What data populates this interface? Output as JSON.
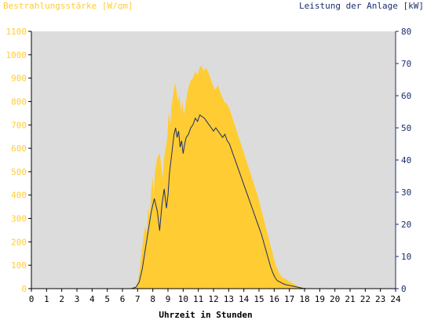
{
  "chart_data": {
    "type": "area",
    "title_left": "Bestrahlungsstärke [W/qm]",
    "title_right": "Leistung der Anlage [kW]",
    "xlabel": "Uhrzeit in Stunden",
    "xlim": [
      0,
      24
    ],
    "x_ticks": [
      "0",
      "1",
      "2",
      "3",
      "4",
      "5",
      "6",
      "7",
      "8",
      "9",
      "10",
      "11",
      "12",
      "13",
      "14",
      "15",
      "16",
      "17",
      "18",
      "19",
      "20",
      "21",
      "22",
      "23",
      "24"
    ],
    "y_left": {
      "lim": [
        0,
        1100
      ],
      "ticks": [
        "0",
        "100",
        "200",
        "300",
        "400",
        "500",
        "600",
        "700",
        "800",
        "900",
        "1000",
        "1100"
      ]
    },
    "y_right": {
      "lim": [
        0,
        80
      ],
      "ticks": [
        "0",
        "10",
        "20",
        "30",
        "40",
        "50",
        "60",
        "70",
        "80"
      ]
    },
    "grid": false,
    "colors": {
      "irradiance": "#ffcc33",
      "power": "#1a2e6e",
      "plot_bg": "#dcdcdc",
      "left_axis_text": "#ffcc33",
      "right_axis_text": "#1a2e6e"
    },
    "series": [
      {
        "axis": "left",
        "style": "area",
        "points": [
          [
            0,
            0
          ],
          [
            6.6,
            0
          ],
          [
            6.9,
            10
          ],
          [
            7.05,
            40
          ],
          [
            7.2,
            120
          ],
          [
            7.35,
            200
          ],
          [
            7.5,
            270
          ],
          [
            7.6,
            240
          ],
          [
            7.7,
            350
          ],
          [
            7.8,
            300
          ],
          [
            7.9,
            420
          ],
          [
            8.0,
            480
          ],
          [
            8.05,
            390
          ],
          [
            8.15,
            500
          ],
          [
            8.3,
            560
          ],
          [
            8.45,
            580
          ],
          [
            8.55,
            530
          ],
          [
            8.65,
            470
          ],
          [
            8.75,
            560
          ],
          [
            8.85,
            600
          ],
          [
            8.95,
            640
          ],
          [
            9.05,
            760
          ],
          [
            9.15,
            700
          ],
          [
            9.25,
            790
          ],
          [
            9.35,
            830
          ],
          [
            9.45,
            880
          ],
          [
            9.55,
            850
          ],
          [
            9.65,
            800
          ],
          [
            9.75,
            830
          ],
          [
            9.85,
            760
          ],
          [
            9.95,
            800
          ],
          [
            10.05,
            740
          ],
          [
            10.15,
            780
          ],
          [
            10.25,
            830
          ],
          [
            10.35,
            860
          ],
          [
            10.5,
            890
          ],
          [
            10.65,
            900
          ],
          [
            10.8,
            930
          ],
          [
            10.95,
            910
          ],
          [
            11.05,
            940
          ],
          [
            11.2,
            955
          ],
          [
            11.35,
            930
          ],
          [
            11.5,
            945
          ],
          [
            11.7,
            920
          ],
          [
            11.9,
            880
          ],
          [
            12.1,
            850
          ],
          [
            12.3,
            870
          ],
          [
            12.5,
            830
          ],
          [
            12.7,
            800
          ],
          [
            12.9,
            790
          ],
          [
            13.1,
            760
          ],
          [
            13.3,
            720
          ],
          [
            13.5,
            680
          ],
          [
            13.7,
            640
          ],
          [
            13.9,
            600
          ],
          [
            14.1,
            560
          ],
          [
            14.3,
            520
          ],
          [
            14.5,
            480
          ],
          [
            14.7,
            440
          ],
          [
            14.9,
            400
          ],
          [
            15.1,
            350
          ],
          [
            15.3,
            300
          ],
          [
            15.5,
            250
          ],
          [
            15.7,
            200
          ],
          [
            15.9,
            150
          ],
          [
            16.1,
            100
          ],
          [
            16.3,
            70
          ],
          [
            16.5,
            50
          ],
          [
            16.8,
            40
          ],
          [
            17.0,
            30
          ],
          [
            17.3,
            20
          ],
          [
            17.6,
            10
          ],
          [
            17.9,
            2
          ],
          [
            18.2,
            0
          ],
          [
            24,
            0
          ]
        ]
      },
      {
        "axis": "right",
        "style": "line",
        "points": [
          [
            0,
            0
          ],
          [
            6.6,
            0
          ],
          [
            6.9,
            0.5
          ],
          [
            7.1,
            2
          ],
          [
            7.3,
            6
          ],
          [
            7.5,
            12
          ],
          [
            7.7,
            18
          ],
          [
            7.9,
            24
          ],
          [
            8.1,
            28
          ],
          [
            8.3,
            24
          ],
          [
            8.45,
            18
          ],
          [
            8.6,
            26
          ],
          [
            8.75,
            31
          ],
          [
            8.9,
            25
          ],
          [
            9.0,
            29
          ],
          [
            9.1,
            36
          ],
          [
            9.2,
            40
          ],
          [
            9.3,
            44
          ],
          [
            9.4,
            48
          ],
          [
            9.5,
            50
          ],
          [
            9.6,
            47
          ],
          [
            9.7,
            49
          ],
          [
            9.8,
            44
          ],
          [
            9.9,
            46
          ],
          [
            10.0,
            42
          ],
          [
            10.1,
            45
          ],
          [
            10.2,
            47
          ],
          [
            10.35,
            48
          ],
          [
            10.5,
            50
          ],
          [
            10.65,
            51
          ],
          [
            10.8,
            53
          ],
          [
            10.95,
            52
          ],
          [
            11.1,
            54
          ],
          [
            11.25,
            53.5
          ],
          [
            11.4,
            53
          ],
          [
            11.55,
            52
          ],
          [
            11.7,
            51
          ],
          [
            11.85,
            50
          ],
          [
            12.0,
            49
          ],
          [
            12.15,
            50
          ],
          [
            12.3,
            49
          ],
          [
            12.45,
            48
          ],
          [
            12.6,
            47
          ],
          [
            12.75,
            48
          ],
          [
            12.9,
            46
          ],
          [
            13.05,
            45
          ],
          [
            13.2,
            43
          ],
          [
            13.35,
            41
          ],
          [
            13.5,
            39
          ],
          [
            13.65,
            37
          ],
          [
            13.8,
            35
          ],
          [
            13.95,
            33
          ],
          [
            14.1,
            31
          ],
          [
            14.25,
            29
          ],
          [
            14.4,
            27
          ],
          [
            14.55,
            25
          ],
          [
            14.7,
            23
          ],
          [
            14.85,
            21
          ],
          [
            15.0,
            19
          ],
          [
            15.15,
            17
          ],
          [
            15.3,
            14.5
          ],
          [
            15.45,
            12
          ],
          [
            15.6,
            9.5
          ],
          [
            15.75,
            7
          ],
          [
            15.9,
            5
          ],
          [
            16.05,
            3.5
          ],
          [
            16.2,
            2.5
          ],
          [
            16.4,
            2
          ],
          [
            16.6,
            1.5
          ],
          [
            16.8,
            1.2
          ],
          [
            17.0,
            1
          ],
          [
            17.3,
            0.7
          ],
          [
            17.6,
            0.4
          ],
          [
            17.9,
            0.1
          ],
          [
            18.2,
            0
          ],
          [
            24,
            0
          ]
        ]
      }
    ]
  }
}
